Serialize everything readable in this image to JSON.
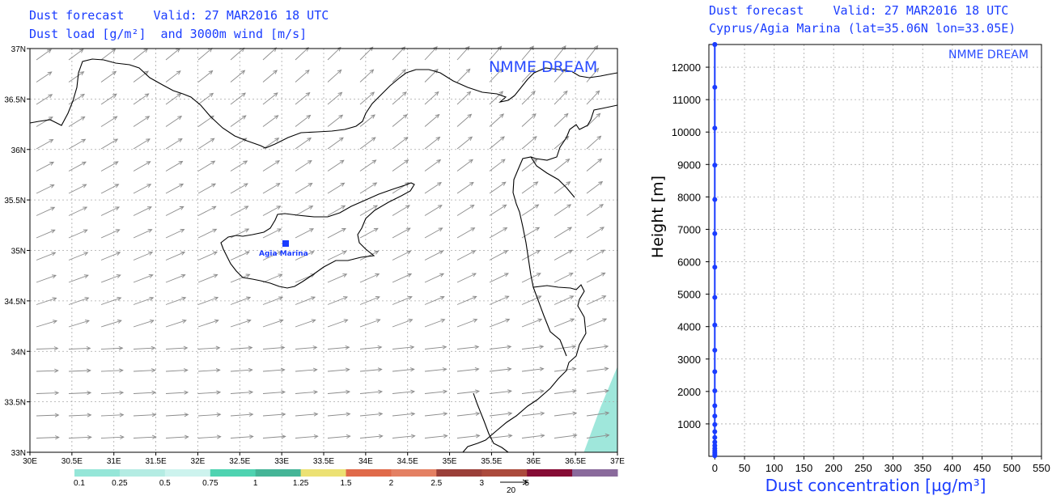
{
  "left_panel": {
    "title_line1": "Dust forecast    Valid: 27 MAR2016 18 UTC",
    "title_line2": "Dust load [g/m²]  and 3000m wind [m/s]",
    "brand": "NMME DREAM",
    "site_label": "Agia Marina",
    "site_color": "#1a3cff",
    "lon_ticks": [
      "30E",
      "30.5E",
      "31E",
      "31.5E",
      "32E",
      "32.5E",
      "33E",
      "33.5E",
      "34E",
      "34.5E",
      "35E",
      "35.5E",
      "36E",
      "36.5E",
      "37E"
    ],
    "lat_ticks": [
      "33N",
      "33.5N",
      "34N",
      "34.5N",
      "35N",
      "35.5N",
      "36N",
      "36.5N",
      "37N"
    ],
    "wind_reference_label": "20",
    "legend": {
      "colors": [
        "#95e6d8",
        "#b4ece3",
        "#cdf3ee",
        "#4fd3b1",
        "#45b597",
        "#ece173",
        "#e06a4a",
        "#e48063",
        "#9b4039",
        "#ab4a3c",
        "#860c35",
        "#8a6a9c"
      ],
      "labels": [
        "0.1",
        "0.25",
        "0.5",
        "0.75",
        "1",
        "1.25",
        "1.5",
        "2",
        "2.5",
        "3",
        "5"
      ]
    }
  },
  "right_panel": {
    "title_line1": "Dust forecast    Valid: 27 MAR2016 18 UTC",
    "title_line2": "Cyprus/Agia Marina (lat=35.06N lon=33.05E)",
    "brand": "NMME DREAM",
    "xlabel": "Dust concentration [µg/m³]",
    "ylabel": "Height [m]",
    "series_color": "#1a3cff",
    "x_ticks": [
      "0",
      "50",
      "100",
      "150",
      "200",
      "250",
      "300",
      "350",
      "400",
      "450",
      "500",
      "550"
    ],
    "y_ticks": [
      "1000",
      "2000",
      "3000",
      "4000",
      "5000",
      "6000",
      "7000",
      "8000",
      "9000",
      "10000",
      "11000",
      "12000"
    ]
  },
  "chart_data": [
    {
      "type": "heatmap",
      "title": "Dust forecast Valid: 27 MAR2016 18 UTC — Dust load [g/m²] and 3000m wind [m/s]",
      "xlim": [
        30,
        37
      ],
      "ylim": [
        33,
        37
      ],
      "colorbar_levels": [
        0.1,
        0.25,
        0.5,
        0.75,
        1,
        1.25,
        1.5,
        2,
        2.5,
        3,
        5
      ],
      "dust_region": [
        [
          36.6,
          33.0
        ],
        [
          37.0,
          33.0
        ],
        [
          37.0,
          33.85
        ],
        [
          36.8,
          33.45
        ]
      ],
      "site": {
        "name": "Agia Marina",
        "lat": 35.06,
        "lon": 33.05
      },
      "wind_reference": 20
    },
    {
      "type": "line",
      "title": "Cyprus/Agia Marina (lat=35.06N lon=33.05E)",
      "xlabel": "Dust concentration [µg/m³]",
      "ylabel": "Height [m]",
      "xlim": [
        -10,
        550
      ],
      "ylim": [
        0,
        12700
      ],
      "grid": true,
      "x": [
        0,
        0,
        0,
        0,
        0,
        0,
        0,
        0,
        0,
        0,
        0,
        0,
        0,
        0,
        0,
        0,
        0,
        0,
        0,
        0,
        0,
        0,
        0,
        0,
        0
      ],
      "y": [
        20,
        60,
        110,
        170,
        240,
        330,
        440,
        580,
        760,
        980,
        1240,
        1560,
        2020,
        2610,
        3270,
        4050,
        4900,
        5830,
        6870,
        7920,
        8980,
        10120,
        11380,
        12700,
        12700
      ]
    }
  ]
}
